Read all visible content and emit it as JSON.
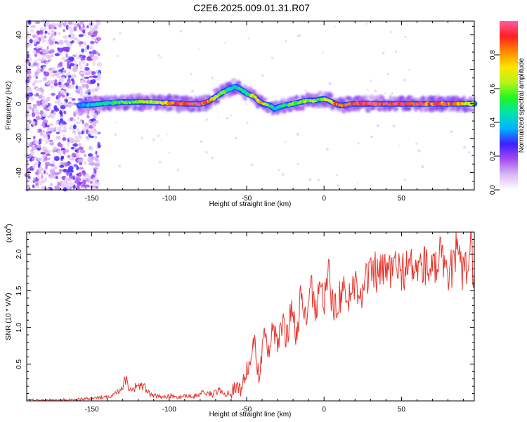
{
  "title": "C2E6.2025.009.01.31.R07",
  "chart_data": [
    {
      "type": "heatmap",
      "xlabel": "Height of straight line (km)",
      "ylabel": "Frequency (Hz)",
      "xlim": [
        -192,
        97
      ],
      "ylim": [
        -50,
        48
      ],
      "x_ticks": [
        -150,
        -100,
        -50,
        0,
        50
      ],
      "y_ticks": [
        -40,
        -20,
        0,
        20,
        40
      ],
      "colorbar": {
        "label": "Normalized spectral amplitude",
        "range": [
          0.0,
          1.0
        ],
        "ticks": [
          0.0,
          0.2,
          0.4,
          0.6,
          0.8
        ],
        "tick_labels": [
          "0.0",
          "0.2",
          "0.4",
          "0.6",
          "0.8"
        ],
        "colors": [
          "#ffffff",
          "#d9b8f5",
          "#a44bf0",
          "#3c1fff",
          "#00b3ff",
          "#00e2b0",
          "#22f522",
          "#b5f51a",
          "#ffe400",
          "#ff8a00",
          "#ff2020",
          "#ff5aa0"
        ]
      },
      "noise_region_x": [
        -192,
        -145
      ],
      "ridge": {
        "x": [
          -158,
          -145,
          -130,
          -115,
          -100,
          -90,
          -80,
          -75,
          -70,
          -65,
          -60,
          -57,
          -55,
          -50,
          -45,
          -40,
          -35,
          -32,
          -30,
          -25,
          -20,
          -15,
          -10,
          -5,
          0,
          5,
          10,
          20,
          40,
          60,
          80,
          97
        ],
        "freq": [
          -1,
          0,
          1,
          1,
          0.5,
          0,
          0,
          1,
          4,
          7,
          9,
          10,
          9,
          6,
          4,
          0,
          -1,
          -3,
          -2,
          -1,
          0,
          1,
          2,
          2,
          3,
          1,
          -1,
          0,
          0,
          0,
          0,
          0
        ],
        "amplitude": [
          0.35,
          0.45,
          0.55,
          0.6,
          0.75,
          0.95,
          0.95,
          0.8,
          0.65,
          0.55,
          0.45,
          0.4,
          0.45,
          0.55,
          0.65,
          0.75,
          0.5,
          0.4,
          0.45,
          0.5,
          0.55,
          0.6,
          0.6,
          0.6,
          0.6,
          0.75,
          0.85,
          0.95,
          0.95,
          0.9,
          0.85,
          0.6
        ]
      }
    },
    {
      "type": "line",
      "xlabel": "Height of straight line (km)",
      "ylabel": "SNR (10 * V/V)",
      "y_scale_label": "(x10",
      "y_scale_exp": "4",
      "xlim": [
        -192,
        97
      ],
      "ylim": [
        0,
        2.3
      ],
      "x_ticks": [
        -150,
        -100,
        -50,
        0,
        50
      ],
      "y_ticks": [
        0.5,
        1.0,
        1.5,
        2.0
      ],
      "y_tick_labels": [
        "0.5",
        "1.0",
        "1.5",
        "2.0"
      ],
      "series": [
        {
          "color": "#e8332a",
          "x": [
            -192,
            -170,
            -150,
            -140,
            -135,
            -130,
            -128,
            -126,
            -124,
            -120,
            -116,
            -112,
            -108,
            -104,
            -100,
            -95,
            -90,
            -85,
            -80,
            -76,
            -72,
            -68,
            -64,
            -60,
            -57,
            -54,
            -51,
            -48,
            -45,
            -42,
            -39,
            -36,
            -33,
            -30,
            -27,
            -24,
            -21,
            -18,
            -15,
            -12,
            -9,
            -6,
            -3,
            0,
            3,
            6,
            9,
            12,
            15,
            18,
            21,
            24,
            27,
            30,
            33,
            36,
            40,
            45,
            50,
            55,
            60,
            65,
            70,
            75,
            80,
            85,
            90,
            95,
            97
          ],
          "y": [
            0.01,
            0.01,
            0.03,
            0.06,
            0.1,
            0.2,
            0.32,
            0.18,
            0.15,
            0.22,
            0.18,
            0.08,
            0.06,
            0.05,
            0.08,
            0.04,
            0.08,
            0.05,
            0.1,
            0.12,
            0.08,
            0.15,
            0.1,
            0.12,
            0.2,
            0.15,
            0.35,
            0.5,
            0.8,
            0.3,
            0.95,
            0.6,
            1.05,
            0.7,
            1.1,
            0.85,
            1.3,
            0.9,
            1.4,
            1.1,
            1.6,
            1.2,
            1.5,
            1.35,
            1.7,
            1.25,
            1.4,
            1.5,
            1.35,
            1.55,
            1.6,
            1.5,
            1.65,
            1.7,
            1.75,
            1.72,
            1.78,
            1.8,
            1.78,
            1.82,
            1.8,
            1.85,
            1.75,
            1.95,
            1.6,
            2.05,
            1.7,
            2.1,
            1.55
          ]
        }
      ]
    }
  ]
}
